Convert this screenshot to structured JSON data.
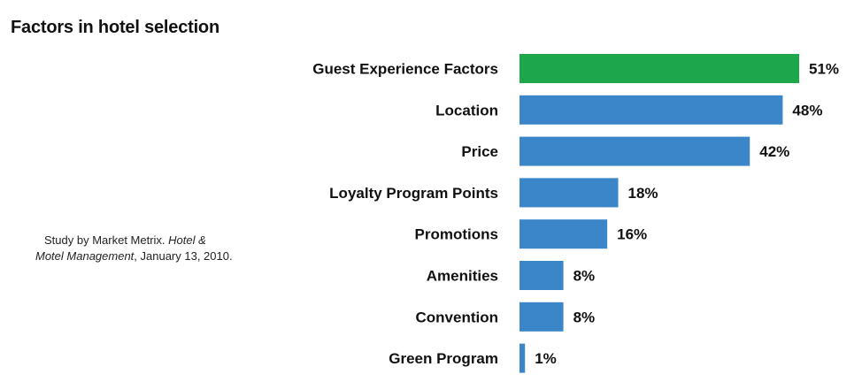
{
  "chart_data": {
    "type": "bar",
    "orientation": "horizontal",
    "title": "Factors in hotel selection",
    "categories": [
      "Guest Experience Factors",
      "Location",
      "Price",
      "Loyalty Program Points",
      "Promotions",
      "Amenities",
      "Convention",
      "Green Program"
    ],
    "values": [
      51,
      48,
      42,
      18,
      16,
      8,
      8,
      1
    ],
    "value_labels": [
      "51%",
      "48%",
      "42%",
      "18%",
      "16%",
      "8%",
      "8%",
      "1%"
    ],
    "unit": "%",
    "colors": [
      "#1ea64a",
      "#3a86c8",
      "#3a86c8",
      "#3a86c8",
      "#3a86c8",
      "#3a86c8",
      "#3a86c8",
      "#3a86c8"
    ],
    "xlim": [
      0,
      51
    ],
    "grid": false,
    "legend": "none"
  },
  "source": {
    "prefix": "Study by Market Metrix. ",
    "publication_part1": "Hotel &",
    "publication_part2": "Motel Management",
    "suffix": ", January 13, 2010."
  }
}
